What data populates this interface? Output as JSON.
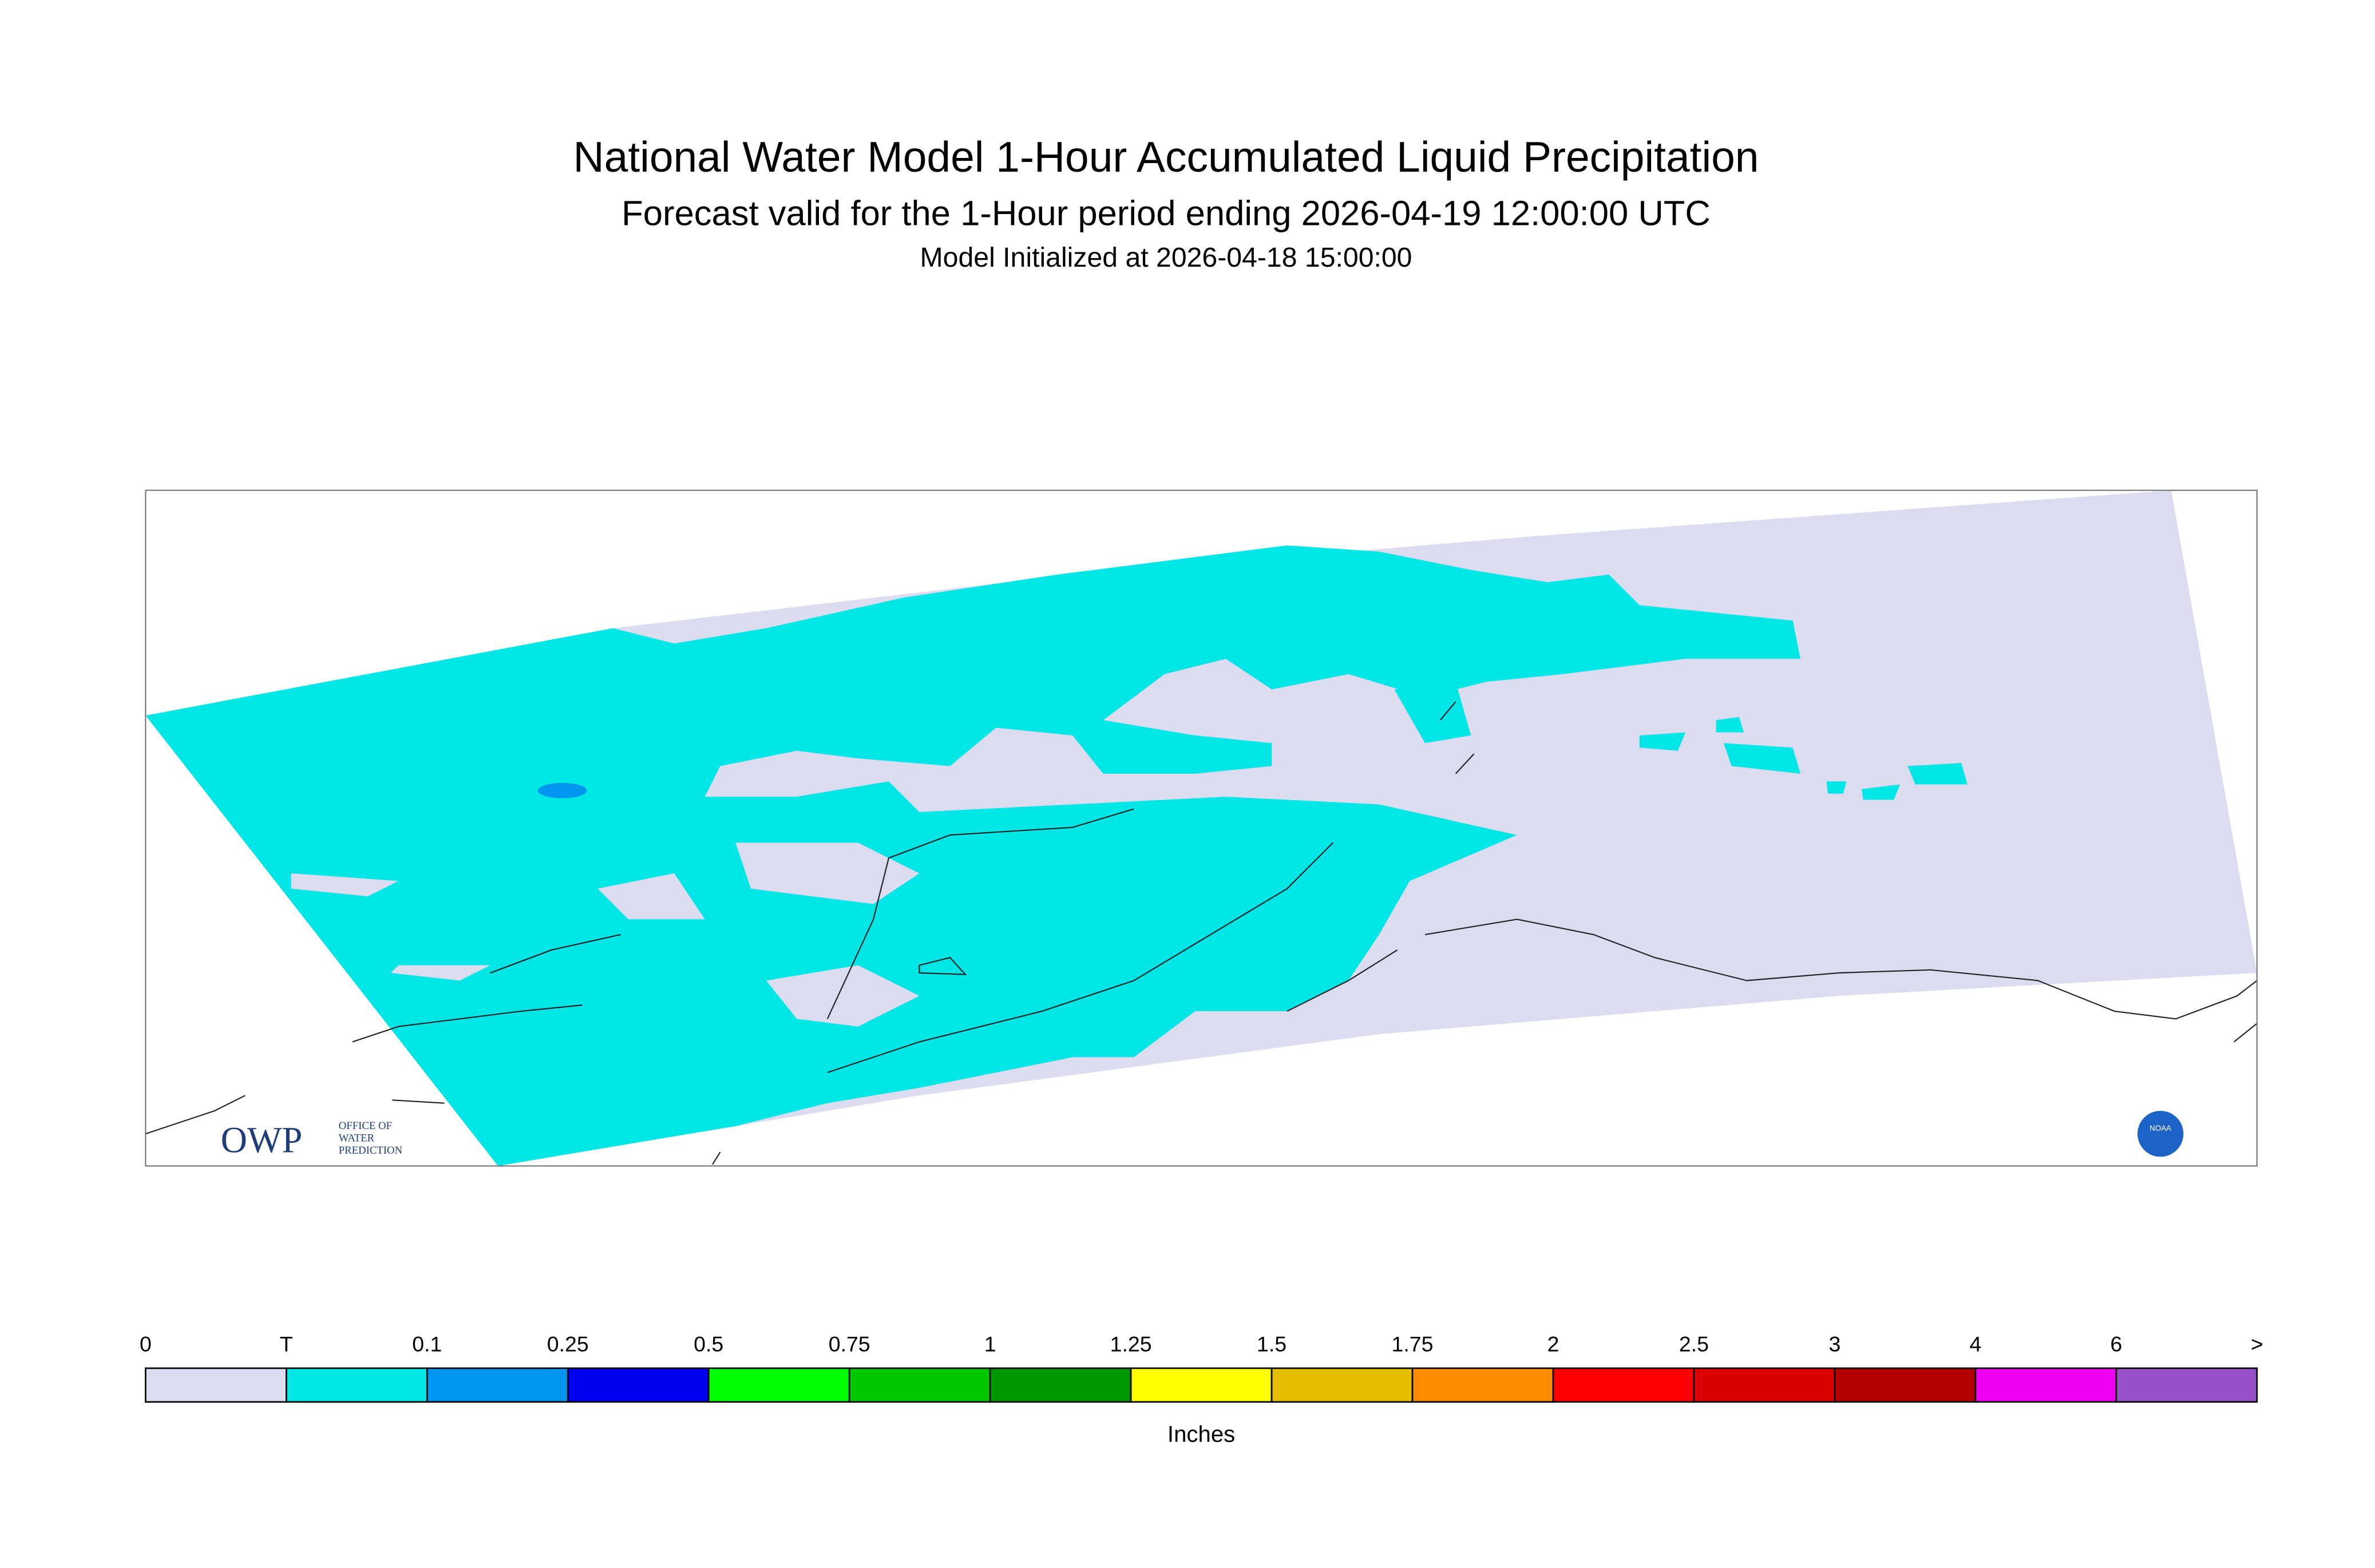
{
  "header": {
    "title": "National Water Model 1-Hour Accumulated Liquid Precipitation",
    "subtitle": "Forecast valid for the 1-Hour period ending 2026-04-19 12:00:00 UTC",
    "initialized": "Model Initialized at 2026-04-18 15:00:00"
  },
  "logos": {
    "owp": "OWP",
    "owp_full": [
      "OFFICE OF",
      "WATER",
      "PREDICTION"
    ],
    "noaa": "NOAA"
  },
  "legend": {
    "labels": [
      "0",
      "T",
      "0.1",
      "0.25",
      "0.5",
      "0.75",
      "1",
      "1.25",
      "1.5",
      "1.75",
      "2",
      "2.5",
      "3",
      "4",
      "6",
      ">"
    ],
    "colors": [
      "#dcdcf0",
      "#00e6e6",
      "#0096f0",
      "#0000f0",
      "#00ff00",
      "#00c800",
      "#009600",
      "#ffff00",
      "#e6be00",
      "#ff8c00",
      "#ff0000",
      "#dc0000",
      "#b40000",
      "#f000f0",
      "#9650c8"
    ],
    "units": "Inches"
  }
}
